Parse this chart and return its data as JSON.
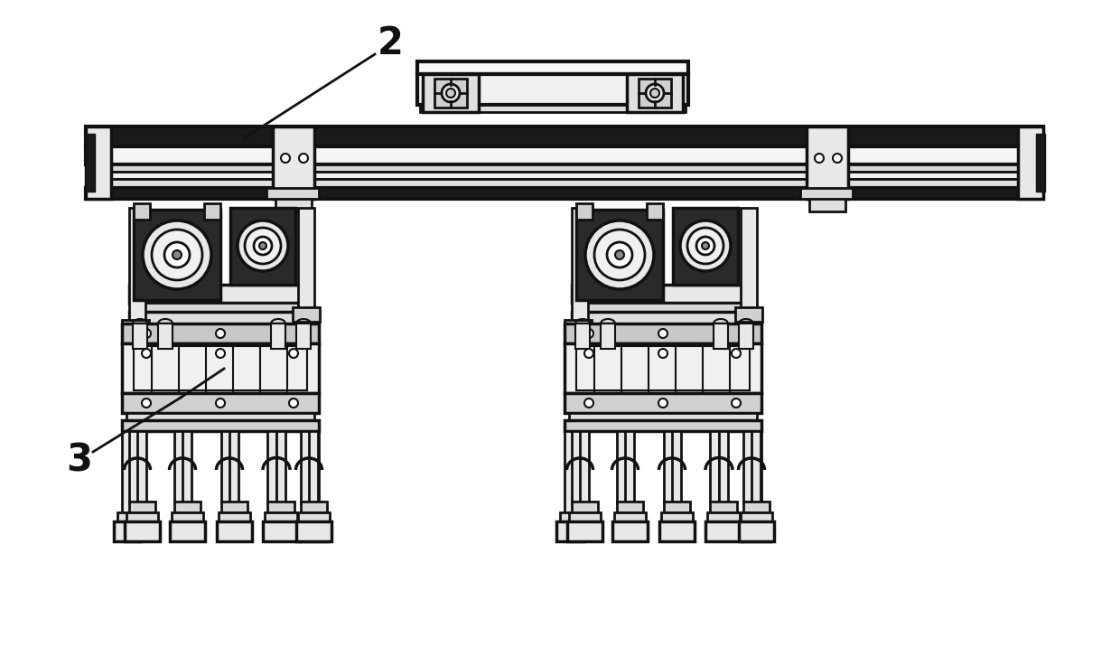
{
  "bg_color": "#ffffff",
  "line_color": "#111111",
  "lw_thick": 3.0,
  "lw_main": 2.0,
  "lw_thin": 1.2,
  "label_fontsize": 30,
  "annotation_lw": 2.0
}
